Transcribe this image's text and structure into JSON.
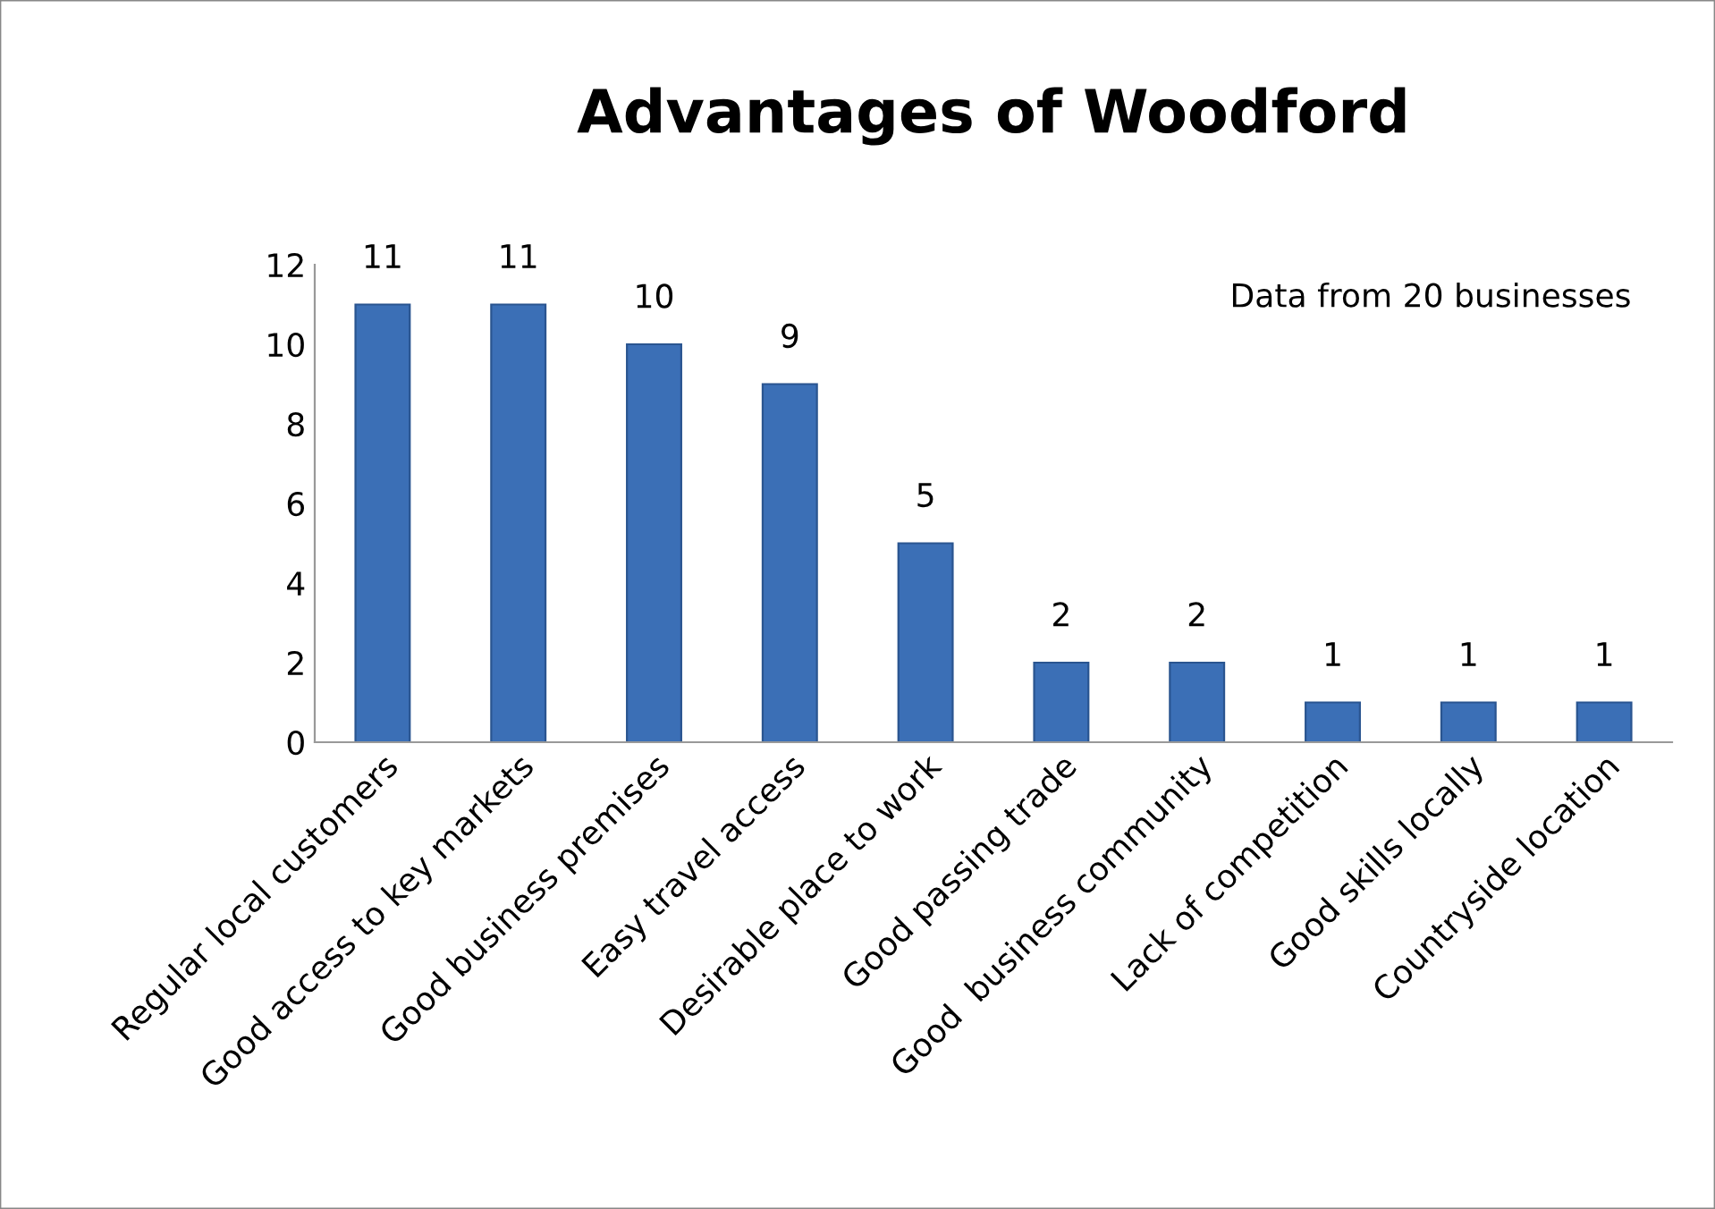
{
  "chart_data": {
    "type": "bar",
    "title": "Advantages of Woodford",
    "categories": [
      "Regular local customers",
      "Good access to key markets",
      "Good business premises",
      "Easy travel access",
      "Desirable place to work",
      "Good passing trade",
      "Good  business community",
      "Lack of competition",
      "Good skills locally",
      "Countryside location"
    ],
    "values": [
      11,
      11,
      10,
      9,
      5,
      2,
      2,
      1,
      1,
      1
    ],
    "color": "#3b6fb6",
    "ylim": [
      0,
      12
    ],
    "yticks": [
      0,
      2,
      4,
      6,
      8,
      10,
      12
    ],
    "grid": false,
    "data_labels": true,
    "annotations": [
      "Data from 20 businesses"
    ]
  }
}
